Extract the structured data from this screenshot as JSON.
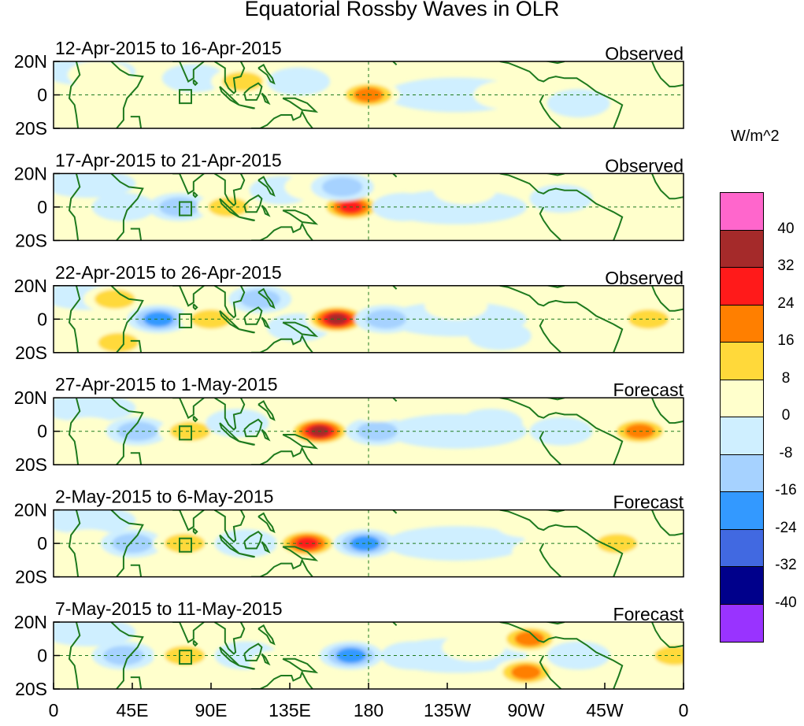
{
  "title": "Equatorial Rossby Waves in OLR",
  "colorbar": {
    "unit": "W/m^2",
    "colors": [
      "#ff66cc",
      "#a52a2a",
      "#ff1a1a",
      "#ff7f00",
      "#ffd93a",
      "#ffffcc",
      "#cfefff",
      "#a6d2ff",
      "#3399ff",
      "#4169e1",
      "#00008b",
      "#9933ff"
    ],
    "labels": [
      "40",
      "32",
      "24",
      "16",
      "8",
      "0",
      "-8",
      "-16",
      "-24",
      "-32",
      "-40"
    ]
  },
  "lat_labels": [
    "20N",
    "0",
    "20S"
  ],
  "lon_labels": [
    "0",
    "45E",
    "90E",
    "135E",
    "180",
    "135W",
    "90W",
    "45W",
    "0"
  ],
  "panels": [
    {
      "dates": "12-Apr-2015 to 16-Apr-2015",
      "kind": "Observed"
    },
    {
      "dates": "17-Apr-2015 to 21-Apr-2015",
      "kind": "Observed"
    },
    {
      "dates": "22-Apr-2015 to 26-Apr-2015",
      "kind": "Observed"
    },
    {
      "dates": "27-Apr-2015 to 1-May-2015",
      "kind": "Forecast"
    },
    {
      "dates": "2-May-2015 to 6-May-2015",
      "kind": "Forecast"
    },
    {
      "dates": "7-May-2015 to 11-May-2015",
      "kind": "Forecast"
    }
  ],
  "anomalies": [
    [
      {
        "lon": 26,
        "lat": 12,
        "v": 8
      },
      {
        "lon": 60,
        "lat": -10,
        "v": 8
      },
      {
        "lon": 80,
        "lat": 10,
        "v": -8
      },
      {
        "lon": 108,
        "lat": 8,
        "v": 16
      },
      {
        "lon": 110,
        "lat": -12,
        "v": 8
      },
      {
        "lon": 140,
        "lat": 8,
        "v": -8
      },
      {
        "lon": 180,
        "lat": 0,
        "v": 24
      },
      {
        "lon": 225,
        "lat": 0,
        "v": -8
      },
      {
        "lon": 258,
        "lat": 0,
        "v": 8
      },
      {
        "lon": 300,
        "lat": -5,
        "v": -8
      },
      {
        "lon": 350,
        "lat": 0,
        "v": 8
      }
    ],
    [
      {
        "lon": 40,
        "lat": 0,
        "v": -8
      },
      {
        "lon": 72,
        "lat": 0,
        "v": -16
      },
      {
        "lon": 100,
        "lat": 0,
        "v": 16
      },
      {
        "lon": 130,
        "lat": 10,
        "v": -8
      },
      {
        "lon": 150,
        "lat": 12,
        "v": 8
      },
      {
        "lon": 170,
        "lat": 0,
        "v": 32
      },
      {
        "lon": 200,
        "lat": 0,
        "v": -8
      },
      {
        "lon": 235,
        "lat": 10,
        "v": 8
      },
      {
        "lon": 290,
        "lat": 5,
        "v": -8
      },
      {
        "lon": 350,
        "lat": 8,
        "v": 8
      },
      {
        "lon": 165,
        "lat": 12,
        "v": -16
      }
    ],
    [
      {
        "lon": 35,
        "lat": 12,
        "v": 16
      },
      {
        "lon": 60,
        "lat": 0,
        "v": -24
      },
      {
        "lon": 90,
        "lat": 0,
        "v": 16
      },
      {
        "lon": 118,
        "lat": 12,
        "v": -16
      },
      {
        "lon": 140,
        "lat": -5,
        "v": -8
      },
      {
        "lon": 162,
        "lat": 0,
        "v": 40
      },
      {
        "lon": 190,
        "lat": 0,
        "v": -16
      },
      {
        "lon": 230,
        "lat": 8,
        "v": 8
      },
      {
        "lon": 255,
        "lat": -10,
        "v": -8
      },
      {
        "lon": 340,
        "lat": 0,
        "v": 16
      },
      {
        "lon": 37,
        "lat": -14,
        "v": 16
      }
    ],
    [
      {
        "lon": 20,
        "lat": 0,
        "v": 8
      },
      {
        "lon": 48,
        "lat": 0,
        "v": -16
      },
      {
        "lon": 78,
        "lat": 0,
        "v": 16
      },
      {
        "lon": 105,
        "lat": 5,
        "v": -8
      },
      {
        "lon": 152,
        "lat": 0,
        "v": 40
      },
      {
        "lon": 185,
        "lat": 0,
        "v": -16
      },
      {
        "lon": 215,
        "lat": 0,
        "v": -8
      },
      {
        "lon": 250,
        "lat": 5,
        "v": -8
      },
      {
        "lon": 290,
        "lat": 0,
        "v": -8
      },
      {
        "lon": 335,
        "lat": 0,
        "v": 24
      },
      {
        "lon": 185,
        "lat": 14,
        "v": 8
      }
    ],
    [
      {
        "lon": 20,
        "lat": 0,
        "v": 8
      },
      {
        "lon": 45,
        "lat": 0,
        "v": -16
      },
      {
        "lon": 75,
        "lat": 0,
        "v": 16
      },
      {
        "lon": 110,
        "lat": 0,
        "v": -8
      },
      {
        "lon": 145,
        "lat": 0,
        "v": 32
      },
      {
        "lon": 178,
        "lat": 0,
        "v": -24
      },
      {
        "lon": 210,
        "lat": 0,
        "v": -8
      },
      {
        "lon": 250,
        "lat": 0,
        "v": -8
      },
      {
        "lon": 280,
        "lat": -5,
        "v": 8
      },
      {
        "lon": 322,
        "lat": 0,
        "v": 16
      },
      {
        "lon": 270,
        "lat": 12,
        "v": 8
      }
    ],
    [
      {
        "lon": 40,
        "lat": 0,
        "v": -16
      },
      {
        "lon": 75,
        "lat": 0,
        "v": 16
      },
      {
        "lon": 110,
        "lat": 0,
        "v": -8
      },
      {
        "lon": 130,
        "lat": -5,
        "v": 8
      },
      {
        "lon": 170,
        "lat": 0,
        "v": -24
      },
      {
        "lon": 205,
        "lat": 0,
        "v": -8
      },
      {
        "lon": 240,
        "lat": 5,
        "v": 8
      },
      {
        "lon": 270,
        "lat": -10,
        "v": 24
      },
      {
        "lon": 272,
        "lat": 10,
        "v": 24
      },
      {
        "lon": 300,
        "lat": 0,
        "v": -8
      },
      {
        "lon": 355,
        "lat": 0,
        "v": 16
      }
    ]
  ]
}
